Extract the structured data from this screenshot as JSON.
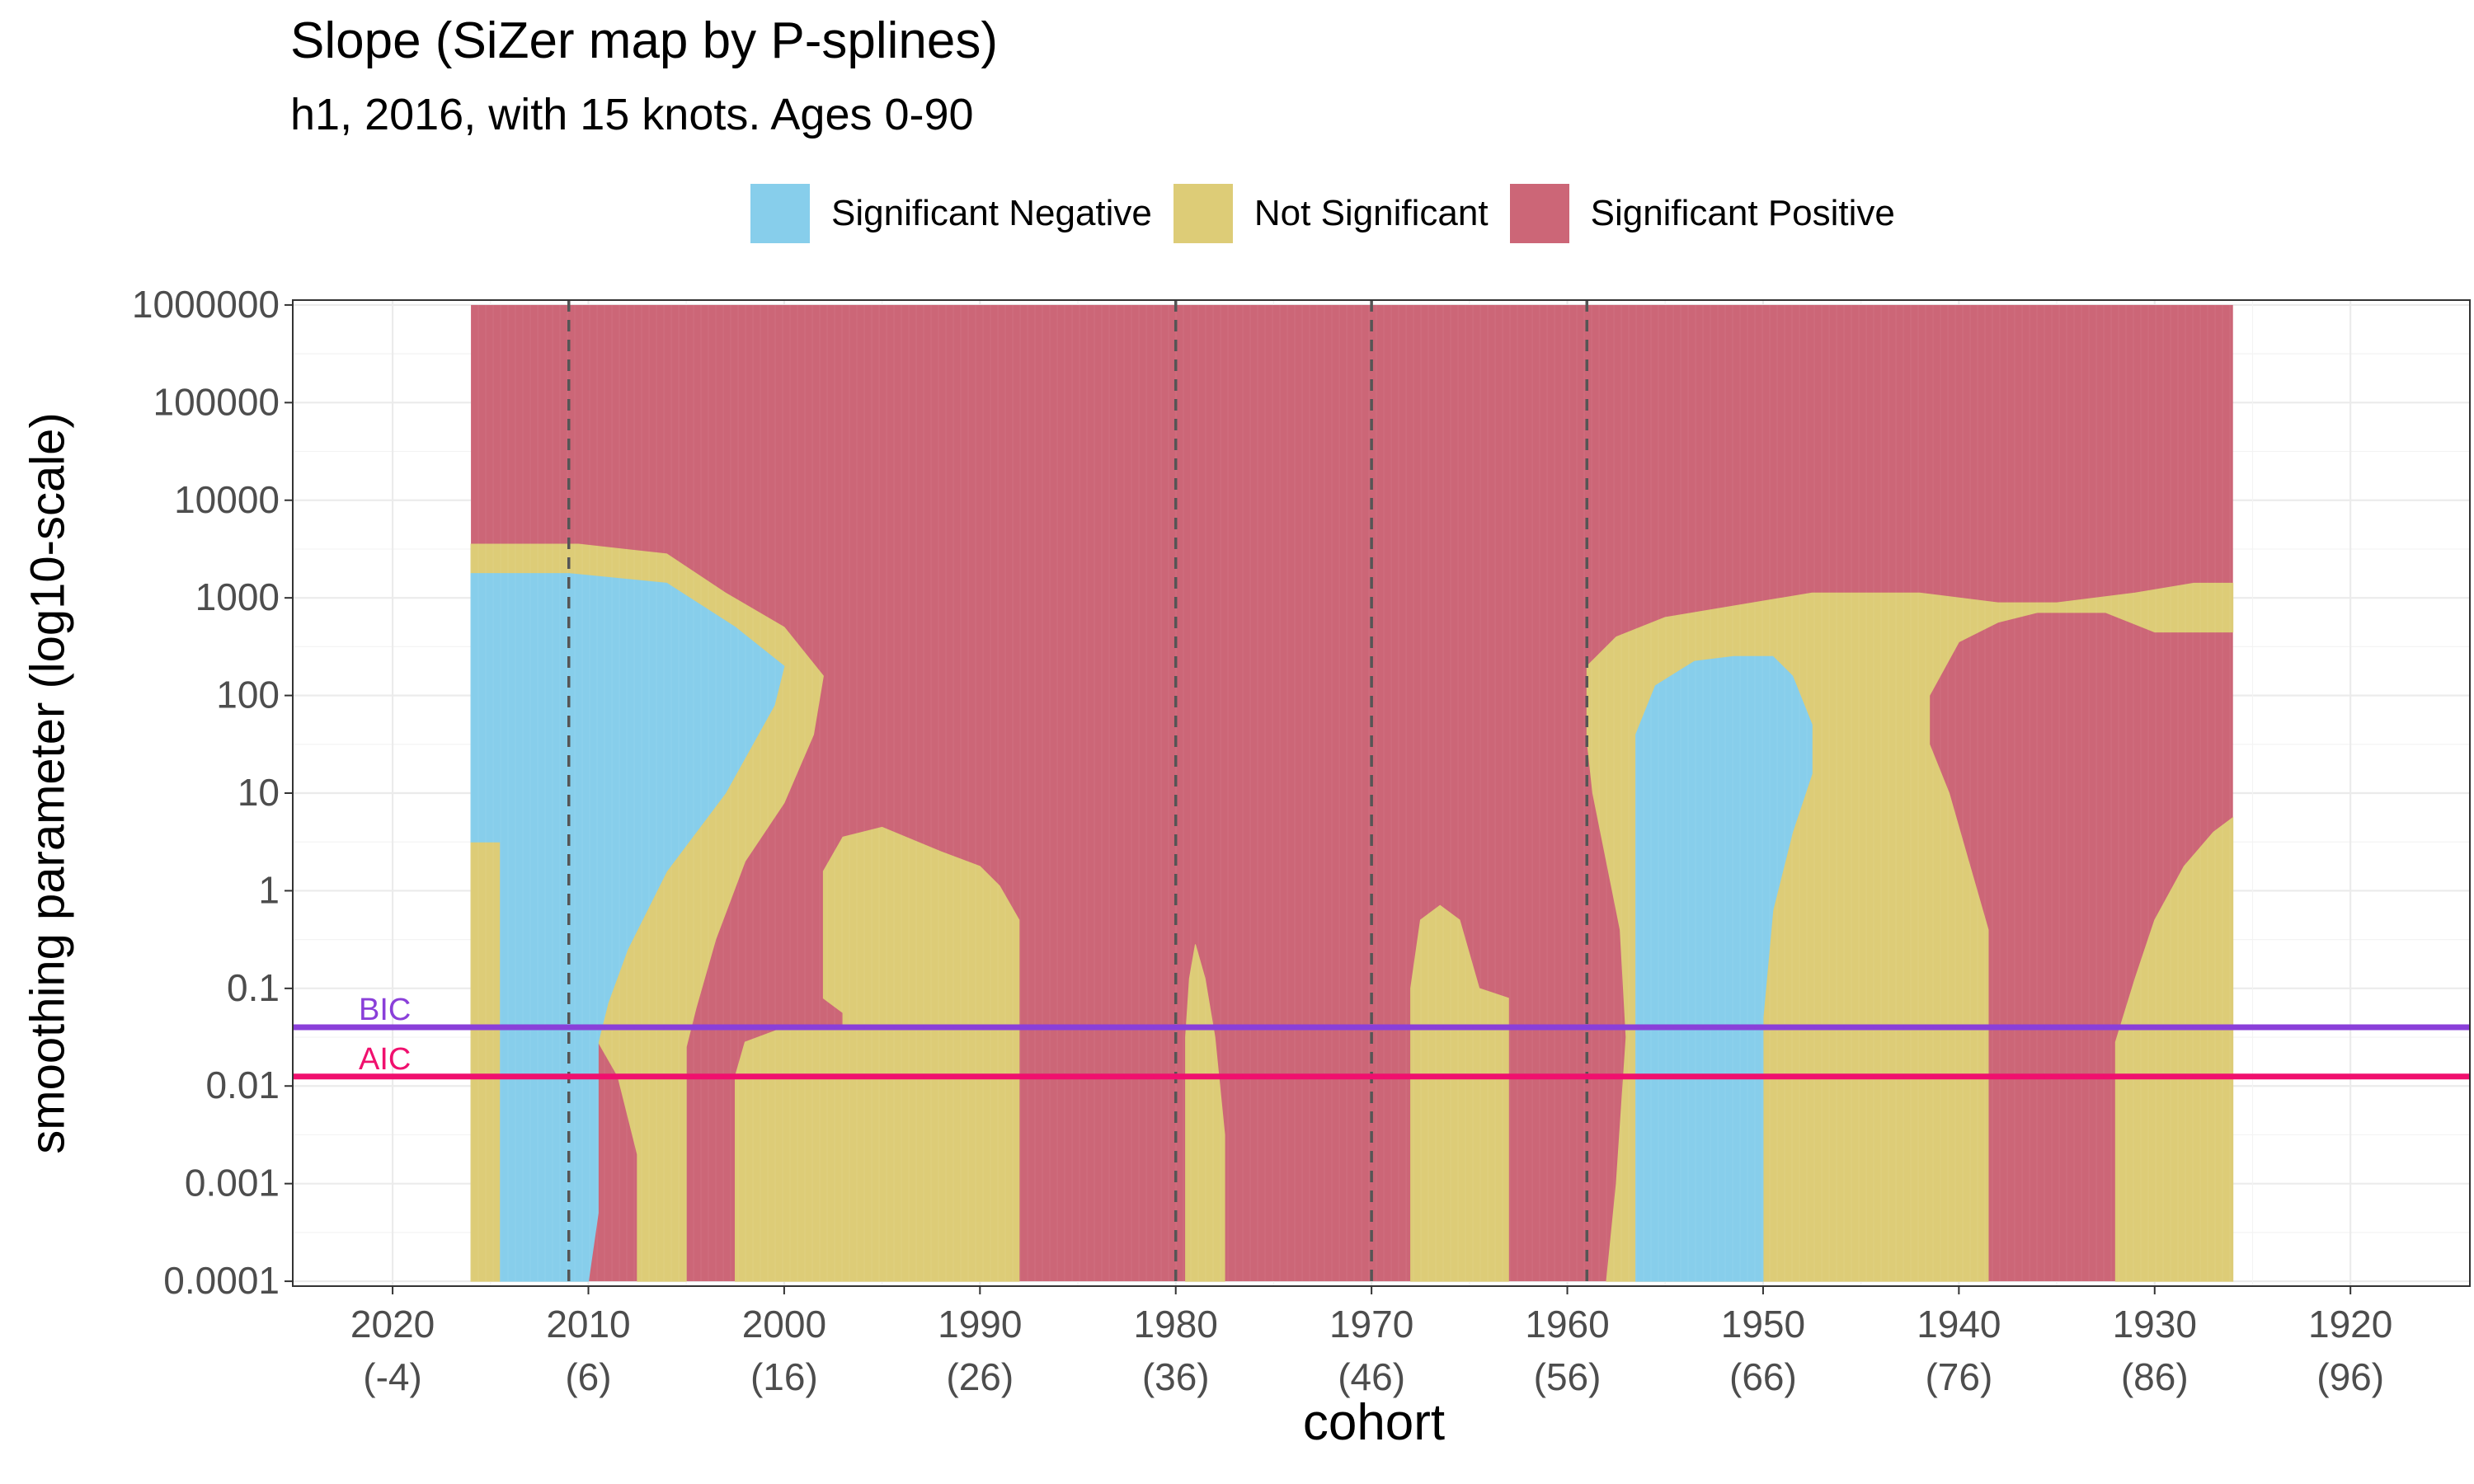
{
  "chart_data": {
    "type": "heatmap",
    "title": "Slope (SiZer map by P-splines)",
    "subtitle": "h1, 2016, with 15 knots. Ages 0-90",
    "xlabel": "cohort",
    "ylabel": "smoothing parameter (log10-scale)",
    "x_reversed": true,
    "xlim": [
      2025.1,
      1913.9
    ],
    "ylim_log10": [
      -4.05,
      6.05
    ],
    "y_scale": "log10",
    "grid": true,
    "legend_position": "top",
    "x_ticks": [
      {
        "value": 2020,
        "label": "2020",
        "sub": "(-4)"
      },
      {
        "value": 2010,
        "label": "2010",
        "sub": "(6)"
      },
      {
        "value": 2000,
        "label": "2000",
        "sub": "(16)"
      },
      {
        "value": 1990,
        "label": "1990",
        "sub": "(26)"
      },
      {
        "value": 1980,
        "label": "1980",
        "sub": "(36)"
      },
      {
        "value": 1970,
        "label": "1970",
        "sub": "(46)"
      },
      {
        "value": 1960,
        "label": "1960",
        "sub": "(56)"
      },
      {
        "value": 1950,
        "label": "1950",
        "sub": "(66)"
      },
      {
        "value": 1940,
        "label": "1940",
        "sub": "(76)"
      },
      {
        "value": 1930,
        "label": "1930",
        "sub": "(86)"
      },
      {
        "value": 1920,
        "label": "1920",
        "sub": "(96)"
      }
    ],
    "y_ticks": [
      {
        "value": 1000000,
        "label": "1000000"
      },
      {
        "value": 100000,
        "label": "100000"
      },
      {
        "value": 10000,
        "label": "10000"
      },
      {
        "value": 1000,
        "label": "1000"
      },
      {
        "value": 100,
        "label": "100"
      },
      {
        "value": 10,
        "label": "10"
      },
      {
        "value": 1,
        "label": "1"
      },
      {
        "value": 0.1,
        "label": "0.1"
      },
      {
        "value": 0.01,
        "label": "0.01"
      },
      {
        "value": 0.001,
        "label": "0.001"
      },
      {
        "value": 0.0001,
        "label": "0.0001"
      }
    ],
    "legend": [
      {
        "key": "neg",
        "label": "Significant Negative",
        "color": "#87CEEB"
      },
      {
        "key": "ns",
        "label": "Not Significant",
        "color": "#DDCC77"
      },
      {
        "key": "pos",
        "label": "Significant Positive",
        "color": "#CC6677"
      }
    ],
    "data_range": {
      "cohort_from": 2016,
      "cohort_to": 1926,
      "lambda_min": 0.0001,
      "lambda_max": 1000000
    },
    "background_class": "pos",
    "regions": [
      {
        "class": "ns",
        "polygon": [
          [
            2016,
            -4
          ],
          [
            2016,
            3.55
          ],
          [
            2010.5,
            3.55
          ],
          [
            2006,
            3.45
          ],
          [
            2003,
            3.05
          ],
          [
            2000,
            2.7
          ],
          [
            1998,
            2.2
          ],
          [
            1998.5,
            1.6
          ],
          [
            2000,
            0.9
          ],
          [
            2002,
            0.3
          ],
          [
            2003.5,
            -0.5
          ],
          [
            2004.5,
            -1.2
          ],
          [
            2005,
            -1.6
          ],
          [
            2005,
            -4
          ],
          [
            2007.5,
            -4
          ],
          [
            2007.5,
            -2.7
          ],
          [
            2008.5,
            -1.9
          ],
          [
            2009.5,
            -1.55
          ],
          [
            2010.5,
            -1.25
          ],
          [
            2013.5,
            -1.05
          ],
          [
            2014.5,
            -0.8
          ],
          [
            2014.5,
            -4
          ]
        ]
      },
      {
        "class": "neg",
        "polygon": [
          [
            2014.5,
            -4
          ],
          [
            2014.5,
            0.5
          ],
          [
            2016,
            0.5
          ],
          [
            2016,
            3.25
          ],
          [
            2011,
            3.25
          ],
          [
            2006,
            3.15
          ],
          [
            2002.5,
            2.7
          ],
          [
            2000,
            2.3
          ],
          [
            2000.5,
            1.9
          ],
          [
            2003,
            1
          ],
          [
            2006,
            0.2
          ],
          [
            2008,
            -0.6
          ],
          [
            2009,
            -1.15
          ],
          [
            2009.5,
            -1.55
          ],
          [
            2009.5,
            -3.3
          ],
          [
            2010,
            -4
          ]
        ]
      },
      {
        "class": "ns",
        "polygon": [
          [
            2002.5,
            -4
          ],
          [
            2002.5,
            -1.9
          ],
          [
            2002,
            -1.55
          ],
          [
            2000,
            -1.4
          ],
          [
            1997,
            -1.4
          ],
          [
            1997,
            -1.25
          ],
          [
            1998,
            -1.1
          ],
          [
            1998,
            0.2
          ],
          [
            1997,
            0.55
          ],
          [
            1995,
            0.65
          ],
          [
            1992,
            0.4
          ],
          [
            1990,
            0.25
          ],
          [
            1989,
            0.05
          ],
          [
            1988,
            -0.3
          ],
          [
            1988,
            -4
          ]
        ]
      },
      {
        "class": "ns",
        "polygon": [
          [
            1979,
            -0.55
          ],
          [
            1978.5,
            -0.9
          ],
          [
            1978,
            -1.5
          ],
          [
            1977.5,
            -2.5
          ],
          [
            1977.5,
            -4
          ],
          [
            1979.5,
            -4
          ],
          [
            1979.5,
            -2.5
          ],
          [
            1979.5,
            -1.5
          ],
          [
            1979.3,
            -0.9
          ]
        ]
      },
      {
        "class": "ns",
        "polygon": [
          [
            1968,
            -4
          ],
          [
            1968,
            -1
          ],
          [
            1967.5,
            -0.3
          ],
          [
            1966.5,
            -0.15
          ],
          [
            1965.5,
            -0.3
          ],
          [
            1964.5,
            -1
          ],
          [
            1963,
            -1.1
          ],
          [
            1963,
            -4
          ]
        ]
      },
      {
        "class": "ns",
        "polygon": [
          [
            1958,
            -4
          ],
          [
            1957.5,
            -3
          ],
          [
            1957,
            -1.5
          ],
          [
            1957.3,
            -0.4
          ],
          [
            1958,
            0.3
          ],
          [
            1958.7,
            1
          ],
          [
            1959,
            1.55
          ],
          [
            1959,
            2.3
          ],
          [
            1957.5,
            2.6
          ],
          [
            1955,
            2.8
          ],
          [
            1952,
            2.9
          ],
          [
            1947.5,
            3.05
          ],
          [
            1942,
            3.05
          ],
          [
            1938,
            2.95
          ],
          [
            1935,
            2.95
          ],
          [
            1931,
            3.05
          ],
          [
            1928,
            3.15
          ],
          [
            1926,
            3.15
          ],
          [
            1926,
            2.65
          ],
          [
            1930,
            2.65
          ],
          [
            1932.5,
            2.85
          ],
          [
            1936,
            2.85
          ],
          [
            1938,
            2.75
          ],
          [
            1940,
            2.55
          ],
          [
            1941.5,
            2
          ],
          [
            1941.5,
            1.5
          ],
          [
            1940.5,
            1
          ],
          [
            1939.5,
            0.3
          ],
          [
            1938.5,
            -0.4
          ],
          [
            1938.5,
            -4
          ]
        ]
      },
      {
        "class": "neg",
        "polygon": [
          [
            1956.5,
            -4
          ],
          [
            1956.5,
            1.6
          ],
          [
            1955.5,
            2.1
          ],
          [
            1953.5,
            2.35
          ],
          [
            1951.5,
            2.4
          ],
          [
            1949.5,
            2.4
          ],
          [
            1948.5,
            2.2
          ],
          [
            1947.5,
            1.7
          ],
          [
            1947.5,
            1.2
          ],
          [
            1948.5,
            0.6
          ],
          [
            1949.5,
            -0.2
          ],
          [
            1950,
            -1.3
          ],
          [
            1950,
            -4
          ]
        ]
      },
      {
        "class": "ns",
        "polygon": [
          [
            1926,
            -4
          ],
          [
            1926,
            0.75
          ],
          [
            1927,
            0.6
          ],
          [
            1928.5,
            0.25
          ],
          [
            1930,
            -0.3
          ],
          [
            1931,
            -0.9
          ],
          [
            1932,
            -1.55
          ],
          [
            1932,
            -4
          ]
        ]
      }
    ],
    "vlines": [
      {
        "value": 2011,
        "style": "dashed"
      },
      {
        "value": 1980,
        "style": "dashed"
      },
      {
        "value": 1970,
        "style": "dashed"
      },
      {
        "value": 1959,
        "style": "dashed"
      }
    ],
    "hlines": [
      {
        "label": "BIC",
        "value": 0.04,
        "color": "#8A3FD9"
      },
      {
        "label": "AIC",
        "value": 0.0125,
        "color": "#F0106E"
      }
    ]
  }
}
